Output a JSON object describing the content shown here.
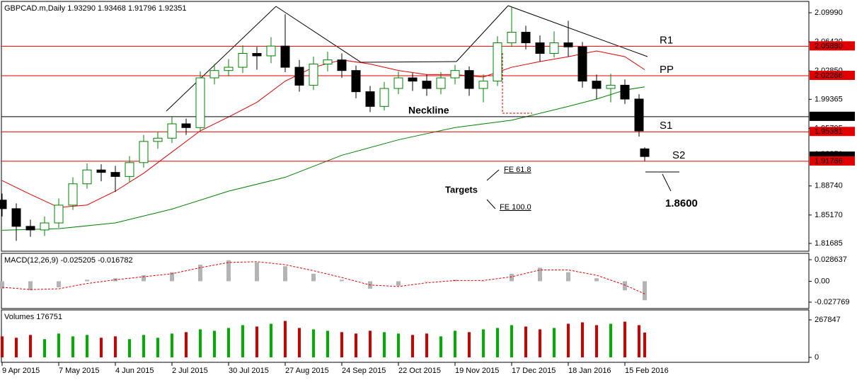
{
  "chart_data": [
    {
      "type": "candlestick",
      "title": "GBPCAD.m,Daily  1.93290 1.93468 1.91796 1.92351",
      "x": [
        0,
        5,
        10,
        15,
        20,
        25,
        30,
        35,
        40,
        45,
        50,
        55,
        60,
        65,
        70,
        75,
        80,
        85,
        90,
        95,
        100,
        105,
        110,
        115,
        120,
        125,
        130,
        135,
        140,
        145,
        150,
        155,
        160,
        165,
        170,
        175,
        180,
        185,
        190,
        195,
        200,
        205,
        210,
        215,
        220,
        225,
        227
      ],
      "open": [
        1.87,
        1.8595,
        1.8378,
        1.8334,
        1.842,
        1.8638,
        1.89,
        1.907,
        1.904,
        1.899,
        1.916,
        1.942,
        1.946,
        1.9636,
        1.959,
        2.02,
        2.029,
        2.033,
        2.05,
        2.047,
        2.059,
        2.033,
        2.011,
        2.037,
        2.042,
        2.029,
        2.003,
        1.985,
        2.007,
        2.02,
        2.016,
        2.007,
        2.02,
        2.029,
        2.007,
        2.016,
        2.063,
        2.076,
        2.063,
        2.05,
        2.063,
        2.058,
        2.016,
        2.007,
        2.011,
        1.994,
        1.9329
      ],
      "high": [
        1.878,
        1.866,
        1.846,
        1.85,
        1.872,
        1.898,
        1.915,
        1.914,
        1.912,
        1.924,
        1.95,
        1.954,
        1.972,
        1.97,
        2.028,
        2.037,
        2.043,
        2.06,
        2.058,
        2.07,
        2.098,
        2.042,
        2.046,
        2.052,
        2.05,
        2.035,
        2.01,
        2.015,
        2.028,
        2.026,
        2.024,
        2.027,
        2.036,
        2.034,
        2.024,
        2.071,
        2.107,
        2.084,
        2.072,
        2.077,
        2.09,
        2.064,
        2.024,
        2.025,
        2.018,
        2.0,
        1.93468
      ],
      "low": [
        1.85,
        1.82,
        1.825,
        1.826,
        1.836,
        1.858,
        1.884,
        1.893,
        1.88,
        1.892,
        1.91,
        1.933,
        1.94,
        1.95,
        1.955,
        2.012,
        2.022,
        2.026,
        2.03,
        2.038,
        2.027,
        2.003,
        2.005,
        2.028,
        2.02,
        1.995,
        1.978,
        1.98,
        2.0,
        2.004,
        1.998,
        2.0,
        2.012,
        1.998,
        1.99,
        2.01,
        2.058,
        2.055,
        2.04,
        2.045,
        2.046,
        2.008,
        1.994,
        1.99,
        1.988,
        1.948,
        1.91796
      ],
      "close": [
        1.8595,
        1.8378,
        1.8334,
        1.842,
        1.8638,
        1.89,
        1.907,
        1.904,
        1.899,
        1.916,
        1.942,
        1.946,
        1.9636,
        1.959,
        2.02,
        2.029,
        2.033,
        2.05,
        2.047,
        2.059,
        2.033,
        2.011,
        2.037,
        2.042,
        2.029,
        2.003,
        1.985,
        2.007,
        2.02,
        2.016,
        2.007,
        2.02,
        2.029,
        2.007,
        2.016,
        2.063,
        2.076,
        2.063,
        2.05,
        2.063,
        2.058,
        2.016,
        2.007,
        2.011,
        1.994,
        1.955,
        1.92351
      ],
      "up_color": "#008000",
      "down_color": "#000000",
      "lines": [
        {
          "color": "#e00000",
          "x": [
            0,
            10,
            20,
            30,
            40,
            50,
            60,
            70,
            80,
            90,
            100,
            110,
            120,
            130,
            140,
            150,
            160,
            170,
            180,
            190,
            200,
            210,
            220,
            227
          ],
          "values": [
            1.894,
            1.877,
            1.861,
            1.864,
            1.881,
            1.903,
            1.929,
            1.955,
            1.972,
            1.99,
            2.016,
            2.033,
            2.042,
            2.037,
            2.029,
            2.024,
            2.024,
            2.021,
            2.033,
            2.04,
            2.046,
            2.053,
            2.046,
            2.03
          ]
        },
        {
          "color": "#008000",
          "x": [
            0,
            20,
            40,
            60,
            80,
            100,
            120,
            140,
            160,
            180,
            200,
            210,
            220,
            227
          ],
          "values": [
            1.833,
            1.835,
            1.842,
            1.859,
            1.881,
            1.898,
            1.925,
            1.944,
            1.959,
            1.968,
            1.985,
            1.994,
            2.005,
            2.009
          ]
        }
      ],
      "levels": [
        {
          "name": "R1",
          "value": 2.0588,
          "label": "2.05880",
          "color": "#e00000"
        },
        {
          "name": "PP",
          "value": 2.02266,
          "color": "#e00000"
        },
        {
          "value": 1.97239,
          "color": "#000000"
        },
        {
          "name": "S1",
          "value": 1.95381,
          "color": "#e00000"
        },
        {
          "name": "S2",
          "value": 1.91766,
          "color": "#e00000"
        }
      ],
      "annotations": [
        "Neckline",
        "Targets",
        "FE 61.8",
        "FE 100.0",
        "1.8600"
      ],
      "xlim": [
        -0.25,
        285
      ],
      "ylim": [
        1.8073,
        2.1138
      ],
      "yticks": [
        1.81685,
        {
          "value": 1.8517,
          "label": "1.85170"
        },
        {
          "value": 1.8874,
          "label": "1.88740"
        },
        1.95795,
        1.99365,
        {
          "value": 2.0285,
          "label": "2.02850"
        },
        {
          "value": 2.0642,
          "label": "2.06420"
        },
        {
          "value": 2.0999,
          "label": "2.09990"
        }
      ]
    },
    {
      "type": "macd",
      "title": "MACD(12,26,9) -0.025205 -0.016782",
      "x": [
        0,
        10,
        20,
        30,
        40,
        50,
        60,
        70,
        80,
        90,
        100,
        110,
        120,
        130,
        140,
        150,
        160,
        170,
        180,
        190,
        200,
        210,
        220,
        227
      ],
      "histogram": [
        -0.01,
        -0.012,
        -0.008,
        0.002,
        0.004,
        0.008,
        0.012,
        0.022,
        0.028,
        0.025,
        0.02,
        0.01,
        0.002,
        -0.01,
        -0.006,
        0.0,
        0.002,
        0.0,
        0.01,
        0.018,
        0.012,
        0.004,
        -0.012,
        -0.025205
      ],
      "signal": [
        -0.008,
        -0.011,
        -0.01,
        -0.003,
        0.002,
        0.006,
        0.01,
        0.018,
        0.025,
        0.026,
        0.022,
        0.014,
        0.005,
        -0.005,
        -0.007,
        -0.002,
        0.001,
        0.001,
        0.006,
        0.015,
        0.015,
        0.008,
        -0.005,
        -0.016782
      ],
      "histogram_color": "#b4b4b4",
      "signal_color": "#e00000",
      "xlim": [
        -0.25,
        285
      ],
      "ylim": [
        -0.03623,
        0.0371
      ],
      "yticks": [
        -0.027769,
        {
          "value": 0,
          "label": "0.00"
        },
        0.028637
      ]
    },
    {
      "type": "bar",
      "title": "Volumes 176751",
      "x": [
        0,
        5,
        10,
        15,
        20,
        25,
        30,
        35,
        40,
        45,
        50,
        55,
        60,
        65,
        70,
        75,
        80,
        85,
        90,
        95,
        100,
        105,
        110,
        115,
        120,
        125,
        130,
        135,
        140,
        145,
        150,
        155,
        160,
        165,
        170,
        175,
        180,
        185,
        190,
        195,
        200,
        205,
        210,
        215,
        220,
        225,
        227
      ],
      "values": [
        150000,
        140000,
        160000,
        130000,
        170000,
        150000,
        160000,
        140000,
        150000,
        130000,
        160000,
        140000,
        170000,
        180000,
        200000,
        190000,
        210000,
        230000,
        220000,
        240000,
        260000,
        210000,
        200000,
        190000,
        180000,
        170000,
        190000,
        180000,
        170000,
        160000,
        170000,
        150000,
        190000,
        180000,
        200000,
        210000,
        230000,
        220000,
        200000,
        210000,
        240000,
        250000,
        230000,
        240000,
        255000,
        230000,
        176751
      ],
      "xlim": [
        -0.25,
        285
      ],
      "ylim": [
        -35400,
        338600
      ],
      "yticks": [
        0,
        267847
      ],
      "xticks": [
        {
          "value": 0,
          "label": "9 Apr 2015"
        },
        {
          "value": 20,
          "label": "7 May 2015"
        },
        {
          "value": 40,
          "label": "4 Jun 2015"
        },
        {
          "value": 60,
          "label": "2 Jul 2015"
        },
        {
          "value": 80,
          "label": "30 Jul 2015"
        },
        {
          "value": 100,
          "label": "27 Aug 2015"
        },
        {
          "value": 120,
          "label": "24 Sep 2015"
        },
        {
          "value": 140,
          "label": "22 Oct 2015"
        },
        {
          "value": 160,
          "label": "19 Nov 2015"
        },
        {
          "value": 180,
          "label": "17 Dec 2015"
        },
        {
          "value": 200,
          "label": "18 Jan 2016"
        },
        {
          "value": 220,
          "label": "15 Feb 2016"
        }
      ]
    }
  ]
}
